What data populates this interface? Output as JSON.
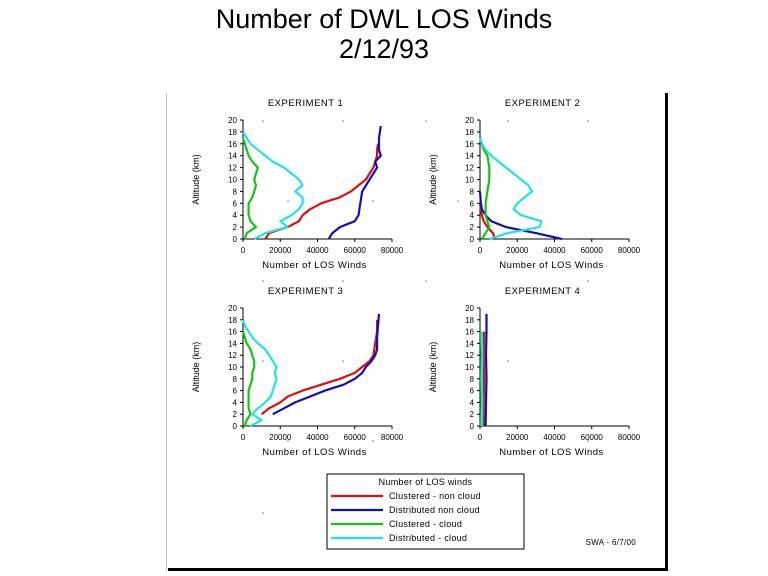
{
  "title": {
    "line1": "Number of DWL LOS Winds",
    "line2": "2/12/93"
  },
  "colors": {
    "clustered_non_cloud": "#d81010",
    "distributed_non_cloud": "#1010b4",
    "clustered_cloud": "#16c416",
    "distributed_cloud": "#22e2e2"
  },
  "legend": {
    "title": "Number of LOS winds",
    "entries": [
      {
        "label": "Clustered - non cloud",
        "color": "#d81010"
      },
      {
        "label": "Distributed   non cloud",
        "color": "#1010b4"
      },
      {
        "label": "Clustered - cloud",
        "color": "#16c416"
      },
      {
        "label": "Distributed - cloud",
        "color": "#22e2e2"
      }
    ]
  },
  "footer_note": "SWA - 6/7/00",
  "chart_data": [
    {
      "type": "line",
      "title": "EXPERIMENT 1",
      "xlabel": "Number of LOS Winds",
      "ylabel": "Altitude (km)",
      "xlim": [
        0,
        80000
      ],
      "ylim": [
        0,
        20
      ],
      "xticks": [
        "0",
        "20000",
        "40000",
        "60000",
        "80000"
      ],
      "yticks": [
        "0",
        "2",
        "4",
        "6",
        "8",
        "10",
        "12",
        "14",
        "16",
        "18",
        "20"
      ],
      "series": [
        {
          "name": "Clustered - non cloud",
          "color": "#d81010",
          "points": [
            [
              12000,
              0
            ],
            [
              14000,
              1
            ],
            [
              24000,
              2
            ],
            [
              30000,
              3
            ],
            [
              32000,
              4
            ],
            [
              36000,
              5
            ],
            [
              42000,
              6
            ],
            [
              52000,
              7
            ],
            [
              58000,
              8
            ],
            [
              62000,
              9
            ],
            [
              66000,
              10
            ],
            [
              68000,
              11
            ],
            [
              70000,
              12
            ],
            [
              71000,
              13
            ],
            [
              72000,
              14
            ],
            [
              72000,
              15
            ],
            [
              72500,
              16
            ]
          ]
        },
        {
          "name": "Distributed   non cloud",
          "color": "#1010b4",
          "points": [
            [
              46000,
              0
            ],
            [
              48000,
              1
            ],
            [
              52000,
              2
            ],
            [
              60000,
              3
            ],
            [
              62000,
              4
            ],
            [
              63000,
              6
            ],
            [
              64000,
              8
            ],
            [
              66000,
              9
            ],
            [
              68000,
              10
            ],
            [
              70000,
              11
            ],
            [
              72000,
              12
            ],
            [
              71000,
              13
            ],
            [
              74000,
              14
            ],
            [
              73000,
              15
            ],
            [
              73000,
              17
            ],
            [
              74000,
              19
            ]
          ]
        },
        {
          "name": "Clustered - cloud",
          "color": "#16c416",
          "points": [
            [
              1000,
              0
            ],
            [
              2000,
              1
            ],
            [
              7000,
              2
            ],
            [
              4000,
              3
            ],
            [
              3000,
              4
            ],
            [
              3000,
              5
            ],
            [
              3000,
              6
            ],
            [
              5000,
              7
            ],
            [
              6000,
              8
            ],
            [
              7000,
              9
            ],
            [
              6000,
              10
            ],
            [
              7000,
              11
            ],
            [
              8000,
              12
            ],
            [
              5000,
              13
            ],
            [
              3000,
              14
            ],
            [
              2000,
              15
            ],
            [
              1000,
              16
            ],
            [
              0,
              17
            ]
          ]
        },
        {
          "name": "Distributed - cloud",
          "color": "#22e2e2",
          "points": [
            [
              6000,
              0
            ],
            [
              12000,
              1
            ],
            [
              24000,
              2
            ],
            [
              20000,
              3
            ],
            [
              26000,
              4
            ],
            [
              30000,
              5
            ],
            [
              32000,
              6
            ],
            [
              32000,
              7
            ],
            [
              28000,
              8
            ],
            [
              32000,
              9
            ],
            [
              30000,
              10
            ],
            [
              26000,
              11
            ],
            [
              22000,
              12
            ],
            [
              16000,
              13
            ],
            [
              12000,
              14
            ],
            [
              8000,
              15
            ],
            [
              4000,
              16
            ],
            [
              2000,
              17
            ],
            [
              0,
              18
            ]
          ]
        }
      ]
    },
    {
      "type": "line",
      "title": "EXPERIMENT 2",
      "xlabel": "Number of LOS Winds",
      "ylabel": "Altitude (km)",
      "xlim": [
        0,
        80000
      ],
      "ylim": [
        0,
        20
      ],
      "xticks": [
        "0",
        "20000",
        "40000",
        "60000",
        "80000"
      ],
      "yticks": [
        "0",
        "2",
        "4",
        "6",
        "8",
        "10",
        "12",
        "14",
        "16",
        "18",
        "20"
      ],
      "series": [
        {
          "name": "Clustered - non cloud",
          "color": "#d81010",
          "points": [
            [
              8000,
              0
            ],
            [
              7000,
              1
            ],
            [
              4000,
              2
            ],
            [
              2000,
              3
            ],
            [
              1000,
              4
            ],
            [
              500,
              5
            ],
            [
              0,
              6
            ]
          ]
        },
        {
          "name": "Distributed   non cloud",
          "color": "#1010b4",
          "points": [
            [
              44000,
              0
            ],
            [
              30000,
              1
            ],
            [
              14000,
              2
            ],
            [
              6000,
              3
            ],
            [
              3000,
              4
            ],
            [
              1000,
              5
            ],
            [
              500,
              6
            ],
            [
              0,
              8
            ]
          ]
        },
        {
          "name": "Clustered - cloud",
          "color": "#16c416",
          "points": [
            [
              1000,
              0
            ],
            [
              3000,
              1
            ],
            [
              5000,
              2
            ],
            [
              4000,
              3
            ],
            [
              3000,
              4
            ],
            [
              3000,
              6
            ],
            [
              4000,
              8
            ],
            [
              5000,
              10
            ],
            [
              5000,
              12
            ],
            [
              4000,
              14
            ],
            [
              2000,
              15
            ],
            [
              1000,
              16
            ],
            [
              0,
              17
            ]
          ]
        },
        {
          "name": "Distributed - cloud",
          "color": "#22e2e2",
          "points": [
            [
              5000,
              0
            ],
            [
              15000,
              1
            ],
            [
              32000,
              2
            ],
            [
              33000,
              3
            ],
            [
              22000,
              4
            ],
            [
              18000,
              5
            ],
            [
              20000,
              6
            ],
            [
              24000,
              7
            ],
            [
              28000,
              8
            ],
            [
              26000,
              9
            ],
            [
              22000,
              10
            ],
            [
              18000,
              11
            ],
            [
              14000,
              12
            ],
            [
              10000,
              13
            ],
            [
              6000,
              14
            ],
            [
              3000,
              15
            ],
            [
              1000,
              16
            ],
            [
              0,
              17
            ]
          ]
        }
      ]
    },
    {
      "type": "line",
      "title": "EXPERIMENT 3",
      "xlabel": "Number of LOS Winds",
      "ylabel": "Altitude (km)",
      "xlim": [
        0,
        80000
      ],
      "ylim": [
        0,
        20
      ],
      "xticks": [
        "0",
        "20000",
        "40000",
        "60000",
        "80000"
      ],
      "yticks": [
        "0",
        "2",
        "4",
        "6",
        "8",
        "10",
        "12",
        "14",
        "16",
        "18",
        "20"
      ],
      "series": [
        {
          "name": "Clustered - non cloud",
          "color": "#d81010",
          "points": [
            [
              10000,
              2
            ],
            [
              14000,
              3
            ],
            [
              20000,
              4
            ],
            [
              24000,
              5
            ],
            [
              32000,
              6
            ],
            [
              42000,
              7
            ],
            [
              52000,
              8
            ],
            [
              60000,
              9
            ],
            [
              64000,
              10
            ],
            [
              68000,
              11
            ],
            [
              70000,
              12
            ],
            [
              71000,
              14
            ],
            [
              72000,
              16
            ],
            [
              72000,
              18
            ]
          ]
        },
        {
          "name": "Distributed   non cloud",
          "color": "#1010b4",
          "points": [
            [
              16000,
              2
            ],
            [
              22000,
              3
            ],
            [
              28000,
              4
            ],
            [
              36000,
              5
            ],
            [
              44000,
              6
            ],
            [
              54000,
              7
            ],
            [
              60000,
              8
            ],
            [
              64000,
              9
            ],
            [
              66000,
              10
            ],
            [
              69000,
              11
            ],
            [
              71000,
              12
            ],
            [
              72000,
              13
            ],
            [
              72000,
              15
            ],
            [
              73000,
              19
            ]
          ]
        },
        {
          "name": "Clustered - cloud",
          "color": "#16c416",
          "points": [
            [
              1000,
              0
            ],
            [
              2000,
              1
            ],
            [
              4000,
              2
            ],
            [
              3000,
              3
            ],
            [
              3000,
              4
            ],
            [
              3000,
              5
            ],
            [
              3000,
              6
            ],
            [
              4000,
              7
            ],
            [
              5000,
              8
            ],
            [
              5000,
              9
            ],
            [
              6000,
              10
            ],
            [
              6000,
              11
            ],
            [
              5000,
              12
            ],
            [
              4000,
              13
            ],
            [
              2000,
              14
            ],
            [
              1000,
              15
            ],
            [
              0,
              16
            ]
          ]
        },
        {
          "name": "Distributed - cloud",
          "color": "#22e2e2",
          "points": [
            [
              4000,
              0
            ],
            [
              10000,
              1
            ],
            [
              5000,
              2
            ],
            [
              8000,
              3
            ],
            [
              12000,
              4
            ],
            [
              15000,
              5
            ],
            [
              16000,
              6
            ],
            [
              17000,
              7
            ],
            [
              18000,
              8
            ],
            [
              17000,
              9
            ],
            [
              18000,
              10
            ],
            [
              16000,
              11
            ],
            [
              14000,
              12
            ],
            [
              12000,
              13
            ],
            [
              8000,
              14
            ],
            [
              5000,
              15
            ],
            [
              3000,
              16
            ],
            [
              1000,
              17
            ],
            [
              0,
              18
            ]
          ]
        }
      ]
    },
    {
      "type": "line",
      "title": "EXPERIMENT 4",
      "xlabel": "Number of LOS Winds",
      "ylabel": "Altitude (km)",
      "xlim": [
        0,
        80000
      ],
      "ylim": [
        0,
        20
      ],
      "xticks": [
        "0",
        "20000",
        "40000",
        "60000",
        "80000"
      ],
      "yticks": [
        "0",
        "2",
        "4",
        "6",
        "8",
        "10",
        "12",
        "14",
        "16",
        "18",
        "20"
      ],
      "series": [
        {
          "name": "Clustered - non cloud",
          "color": "#d81010",
          "points": [
            [
              2000,
              0
            ],
            [
              2000,
              4
            ],
            [
              2200,
              8
            ],
            [
              2000,
              12
            ],
            [
              2200,
              16
            ]
          ]
        },
        {
          "name": "Distributed   non cloud",
          "color": "#1010b4",
          "points": [
            [
              3000,
              0
            ],
            [
              3200,
              4
            ],
            [
              3500,
              8
            ],
            [
              3200,
              12
            ],
            [
              3500,
              16
            ],
            [
              3500,
              19
            ]
          ]
        },
        {
          "name": "Clustered - cloud",
          "color": "#16c416",
          "points": [
            [
              500,
              0
            ],
            [
              800,
              4
            ],
            [
              600,
              8
            ],
            [
              800,
              12
            ],
            [
              500,
              16
            ]
          ]
        },
        {
          "name": "Distributed - cloud",
          "color": "#22e2e2",
          "points": [
            [
              1000,
              0
            ],
            [
              1200,
              4
            ],
            [
              1000,
              8
            ],
            [
              1200,
              12
            ],
            [
              1000,
              16
            ]
          ]
        }
      ]
    }
  ]
}
